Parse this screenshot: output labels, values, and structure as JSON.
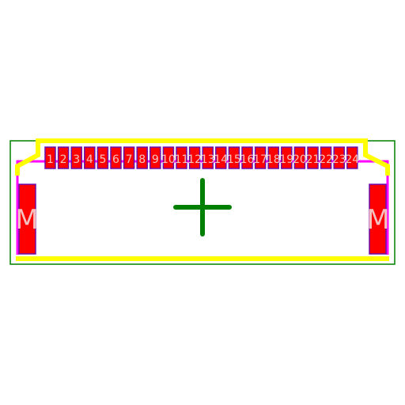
{
  "footprint": {
    "pins": [
      "1",
      "2",
      "3",
      "4",
      "5",
      "6",
      "7",
      "8",
      "9",
      "10",
      "11",
      "12",
      "13",
      "14",
      "15",
      "16",
      "17",
      "18",
      "19",
      "20",
      "21",
      "22",
      "23",
      "24"
    ],
    "mount_pads": [
      {
        "side": "left",
        "label": "M"
      },
      {
        "side": "right",
        "label": "M"
      }
    ],
    "colors": {
      "courtyard": "#008000",
      "silkscreen": "#ffff00",
      "fab": "#ff00ff",
      "pad_fill": "#ff0000",
      "pad_outline": "#6a0dad",
      "pad_text": "#f4c0c0",
      "origin_cross": "#008000"
    },
    "origin_icon": "crosshair-plus-icon"
  }
}
